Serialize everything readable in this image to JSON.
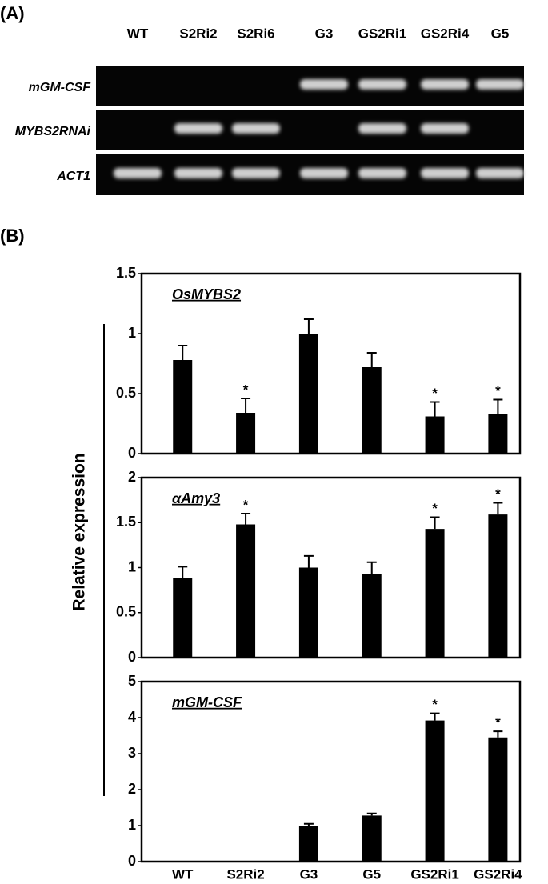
{
  "panel_a": {
    "label": "(A)",
    "lanes": [
      "WT",
      "S2Ri2",
      "S2Ri6",
      "G3",
      "GS2Ri1",
      "GS2Ri4",
      "G5"
    ],
    "rows": [
      {
        "label": "mGM-CSF",
        "bands": [
          false,
          false,
          false,
          true,
          true,
          true,
          true
        ]
      },
      {
        "label": "MYBS2RNAi",
        "bands": [
          false,
          true,
          true,
          false,
          true,
          true,
          false
        ]
      },
      {
        "label": "ACT1",
        "bands": [
          true,
          true,
          true,
          true,
          true,
          true,
          true
        ]
      }
    ]
  },
  "panel_b": {
    "label": "(B)",
    "y_label": "Relative expression"
  },
  "chart_data": [
    {
      "type": "bar",
      "title": "OsMYBS2",
      "color": "#000000",
      "values": [
        0.78,
        0.34,
        1.0,
        0.72,
        0.31,
        0.33
      ],
      "errors": [
        0.12,
        0.12,
        0.12,
        0.12,
        0.12,
        0.12
      ],
      "significance": [
        null,
        "*",
        null,
        null,
        "*",
        "*"
      ],
      "ylim": [
        0,
        1.5
      ],
      "yticks": [
        0,
        0.5,
        1,
        1.5
      ]
    },
    {
      "type": "bar",
      "title": "αAmy3",
      "color": "#000000",
      "values": [
        0.88,
        1.48,
        1.0,
        0.93,
        1.43,
        1.59
      ],
      "errors": [
        0.13,
        0.12,
        0.13,
        0.13,
        0.13,
        0.13
      ],
      "significance": [
        null,
        "*",
        null,
        null,
        "*",
        "*"
      ],
      "ylim": [
        0,
        2
      ],
      "yticks": [
        0,
        0.5,
        1,
        1.5,
        2
      ]
    },
    {
      "type": "bar",
      "title": "mGM-CSF",
      "color": "#000000",
      "categories": [
        "WT",
        "S2Ri2",
        "G3",
        "G5",
        "GS2Ri1",
        "GS2Ri4"
      ],
      "values": [
        0,
        0,
        1.0,
        1.28,
        3.92,
        3.45
      ],
      "errors": [
        null,
        null,
        0.05,
        0.06,
        0.2,
        0.17
      ],
      "significance": [
        null,
        null,
        null,
        null,
        "*",
        "*"
      ],
      "ylim": [
        0,
        5
      ],
      "yticks": [
        0,
        1,
        2,
        3,
        4,
        5
      ]
    }
  ]
}
